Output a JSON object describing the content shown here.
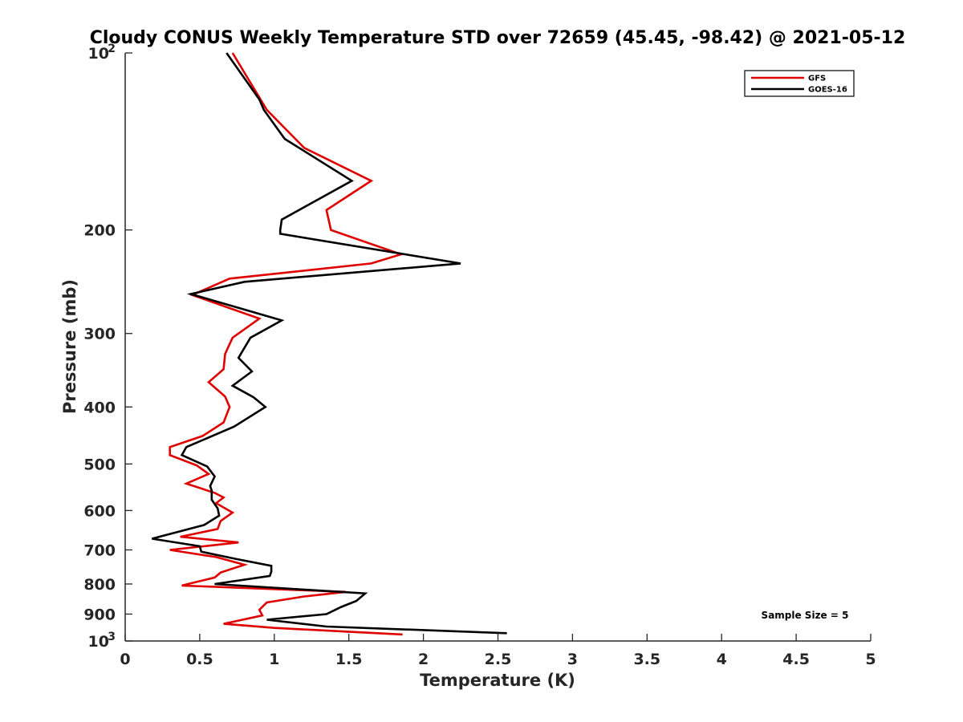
{
  "chart_data": {
    "type": "line",
    "title": "Cloudy CONUS Weekly Temperature STD over 72659 (45.45, -98.42) @ 2021-05-12",
    "xlabel": "Temperature (K)",
    "ylabel": "Pressure (mb)",
    "xlim": [
      0,
      5
    ],
    "ylim": [
      100,
      1000
    ],
    "y_scale": "log",
    "y_reversed": true,
    "x_ticks": [
      "0",
      "0.5",
      "1",
      "1.5",
      "2",
      "2.5",
      "3",
      "3.5",
      "4",
      "4.5",
      "5"
    ],
    "y_ticks": [
      {
        "value": 100,
        "label": "10",
        "sup": "2"
      },
      {
        "value": 200,
        "label": "200",
        "sup": ""
      },
      {
        "value": 300,
        "label": "300",
        "sup": ""
      },
      {
        "value": 400,
        "label": "400",
        "sup": ""
      },
      {
        "value": 500,
        "label": "500",
        "sup": ""
      },
      {
        "value": 600,
        "label": "600",
        "sup": ""
      },
      {
        "value": 700,
        "label": "700",
        "sup": ""
      },
      {
        "value": 800,
        "label": "800",
        "sup": ""
      },
      {
        "value": 900,
        "label": "900",
        "sup": ""
      },
      {
        "value": 1000,
        "label": "10",
        "sup": "3"
      }
    ],
    "grid": false,
    "legend_position": "top-right",
    "annotation": "Sample Size = 5",
    "series": [
      {
        "name": "GFS",
        "color": "#e00000",
        "points": [
          [
            0.72,
            100
          ],
          [
            0.95,
            125
          ],
          [
            1.2,
            145
          ],
          [
            1.65,
            165
          ],
          [
            1.35,
            185
          ],
          [
            1.38,
            200
          ],
          [
            1.85,
            220
          ],
          [
            1.65,
            228
          ],
          [
            0.7,
            242
          ],
          [
            0.45,
            258
          ],
          [
            0.9,
            283
          ],
          [
            0.72,
            305
          ],
          [
            0.67,
            325
          ],
          [
            0.66,
            345
          ],
          [
            0.56,
            363
          ],
          [
            0.67,
            384
          ],
          [
            0.7,
            400
          ],
          [
            0.66,
            425
          ],
          [
            0.52,
            448
          ],
          [
            0.3,
            468
          ],
          [
            0.3,
            483
          ],
          [
            0.48,
            503
          ],
          [
            0.56,
            520
          ],
          [
            0.41,
            540
          ],
          [
            0.6,
            560
          ],
          [
            0.66,
            570
          ],
          [
            0.61,
            583
          ],
          [
            0.72,
            605
          ],
          [
            0.64,
            625
          ],
          [
            0.62,
            645
          ],
          [
            0.37,
            665
          ],
          [
            0.76,
            680
          ],
          [
            0.3,
            700
          ],
          [
            0.61,
            720
          ],
          [
            0.8,
            742
          ],
          [
            0.64,
            765
          ],
          [
            0.6,
            780
          ],
          [
            0.38,
            805
          ],
          [
            1.48,
            825
          ],
          [
            1.2,
            840
          ],
          [
            0.95,
            860
          ],
          [
            0.9,
            885
          ],
          [
            0.92,
            905
          ],
          [
            0.66,
            935
          ],
          [
            1.0,
            950
          ],
          [
            1.86,
            975
          ]
        ]
      },
      {
        "name": "GOES-16",
        "color": "#000000",
        "points": [
          [
            0.68,
            100
          ],
          [
            0.9,
            120
          ],
          [
            0.93,
            125
          ],
          [
            1.07,
            140
          ],
          [
            1.52,
            165
          ],
          [
            1.05,
            192
          ],
          [
            1.04,
            200
          ],
          [
            1.04,
            203
          ],
          [
            2.25,
            228
          ],
          [
            0.8,
            245
          ],
          [
            0.44,
            257
          ],
          [
            1.05,
            285
          ],
          [
            0.84,
            305
          ],
          [
            0.76,
            330
          ],
          [
            0.85,
            348
          ],
          [
            0.72,
            368
          ],
          [
            0.86,
            385
          ],
          [
            0.94,
            400
          ],
          [
            0.73,
            432
          ],
          [
            0.41,
            468
          ],
          [
            0.38,
            483
          ],
          [
            0.55,
            505
          ],
          [
            0.6,
            525
          ],
          [
            0.57,
            545
          ],
          [
            0.58,
            555
          ],
          [
            0.58,
            575
          ],
          [
            0.62,
            595
          ],
          [
            0.63,
            612
          ],
          [
            0.53,
            635
          ],
          [
            0.18,
            670
          ],
          [
            0.5,
            690
          ],
          [
            0.51,
            705
          ],
          [
            0.74,
            725
          ],
          [
            0.98,
            745
          ],
          [
            0.98,
            762
          ],
          [
            0.97,
            775
          ],
          [
            0.6,
            800
          ],
          [
            1.61,
            830
          ],
          [
            1.55,
            855
          ],
          [
            1.45,
            875
          ],
          [
            1.35,
            900
          ],
          [
            0.95,
            920
          ],
          [
            1.35,
            945
          ],
          [
            2.56,
            970
          ]
        ]
      }
    ]
  }
}
